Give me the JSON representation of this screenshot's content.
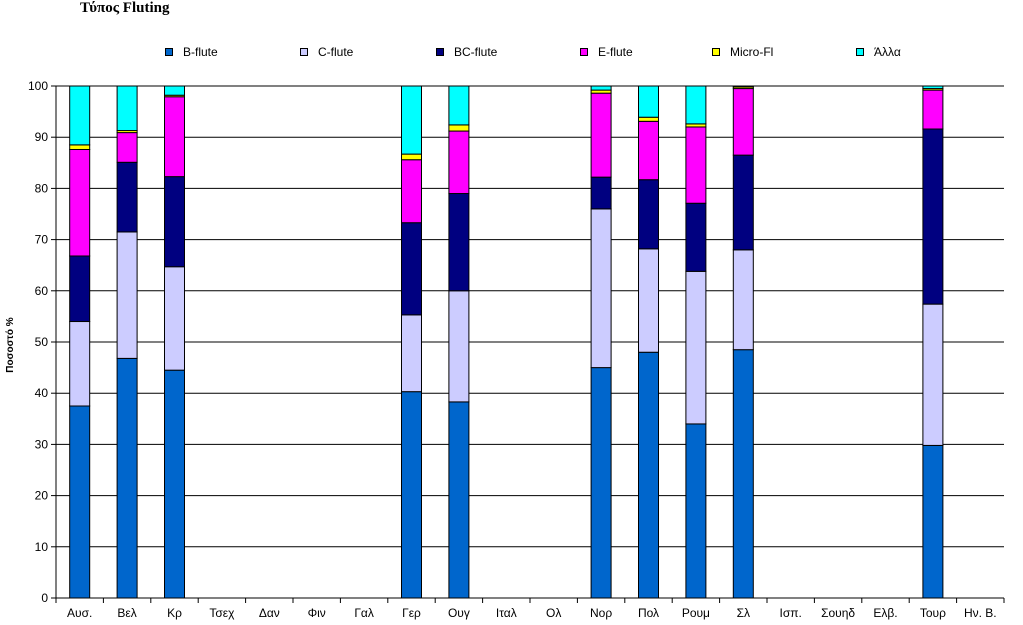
{
  "chart_data": {
    "type": "bar",
    "stacked": true,
    "title": "Τύπος Fluting",
    "xlabel": "",
    "ylabel": "Ποσοστό %",
    "ylim": [
      0,
      100
    ],
    "yticks": [
      0,
      10,
      20,
      30,
      40,
      50,
      60,
      70,
      80,
      90,
      100
    ],
    "grid": true,
    "legend_position": "top",
    "categories": [
      "Αυσ.",
      "Βελ",
      "Κρ",
      "Τσεχ",
      "Δαν",
      "Φιν",
      "Γαλ",
      "Γερ",
      "Ουγ",
      "Ιταλ",
      "Ολ",
      "Νορ",
      "Πολ",
      "Ρουμ",
      "Σλ",
      "Ισπ.",
      "Σουηδ",
      "Ελβ.",
      "Τουρ",
      "Ην. Β."
    ],
    "series": [
      {
        "name": "B-flute",
        "color": "#0066CC",
        "values": [
          37.5,
          46.8,
          44.5,
          0,
          0,
          0,
          0,
          40.3,
          38.3,
          0,
          0,
          45.0,
          48.0,
          34.0,
          48.5,
          0,
          0,
          0,
          29.8,
          0
        ]
      },
      {
        "name": "C-flute",
        "color": "#CCCCFF",
        "values": [
          16.5,
          24.7,
          20.2,
          0,
          0,
          0,
          0,
          15.0,
          21.7,
          0,
          0,
          31.0,
          20.2,
          29.8,
          19.5,
          0,
          0,
          0,
          27.6,
          0
        ]
      },
      {
        "name": "BC-flute",
        "color": "#000080",
        "values": [
          12.8,
          13.6,
          17.6,
          0,
          0,
          0,
          0,
          18.0,
          19.0,
          0,
          0,
          6.2,
          13.5,
          13.3,
          18.5,
          0,
          0,
          0,
          34.2,
          0
        ]
      },
      {
        "name": "E-flute",
        "color": "#FF00FF",
        "values": [
          20.8,
          5.8,
          15.6,
          0,
          0,
          0,
          0,
          12.3,
          12.2,
          0,
          0,
          16.4,
          11.4,
          14.9,
          13.0,
          0,
          0,
          0,
          7.6,
          0
        ]
      },
      {
        "name": "Micro-Fl",
        "color": "#FFFF00",
        "values": [
          0.9,
          0.4,
          0.3,
          0,
          0,
          0,
          0,
          1.1,
          1.2,
          0,
          0,
          0.6,
          0.8,
          0.6,
          0.3,
          0,
          0,
          0,
          0.3,
          0
        ]
      },
      {
        "name": "Άλλα",
        "color": "#00FFFF",
        "values": [
          11.5,
          8.7,
          1.8,
          0,
          0,
          0,
          0,
          13.3,
          7.6,
          0,
          0,
          0.8,
          6.1,
          7.4,
          0.2,
          0,
          0,
          0,
          0.5,
          0
        ]
      }
    ]
  }
}
